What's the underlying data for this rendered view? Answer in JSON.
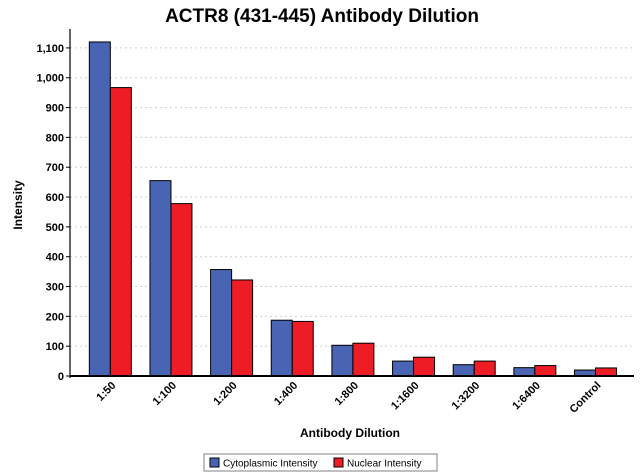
{
  "chart_data": {
    "type": "bar",
    "title": "ACTR8 (431-445) Antibody Dilution",
    "xlabel": "Antibody Dilution",
    "ylabel": "Intensity",
    "categories": [
      "1:50",
      "1:100",
      "1:200",
      "1:400",
      "1:800",
      "1:1600",
      "1:3200",
      "1:6400",
      "Control"
    ],
    "series": [
      {
        "name": "Cytoplasmic Intensity",
        "color": "#4a64b4",
        "values": [
          1120,
          655,
          357,
          187,
          103,
          50,
          38,
          28,
          20
        ]
      },
      {
        "name": "Nuclear Intensity",
        "color": "#ee1c24",
        "values": [
          967,
          578,
          322,
          183,
          110,
          63,
          50,
          35,
          27
        ]
      }
    ],
    "ylim": [
      0,
      1150
    ],
    "yticks": [
      0,
      100,
      200,
      300,
      400,
      500,
      600,
      700,
      800,
      900,
      1000,
      1100
    ],
    "ytick_labels": [
      "0",
      "100",
      "200",
      "300",
      "400",
      "500",
      "600",
      "700",
      "800",
      "900",
      "1,000",
      "1,100"
    ],
    "grid": true,
    "legend_position": "bottom"
  }
}
